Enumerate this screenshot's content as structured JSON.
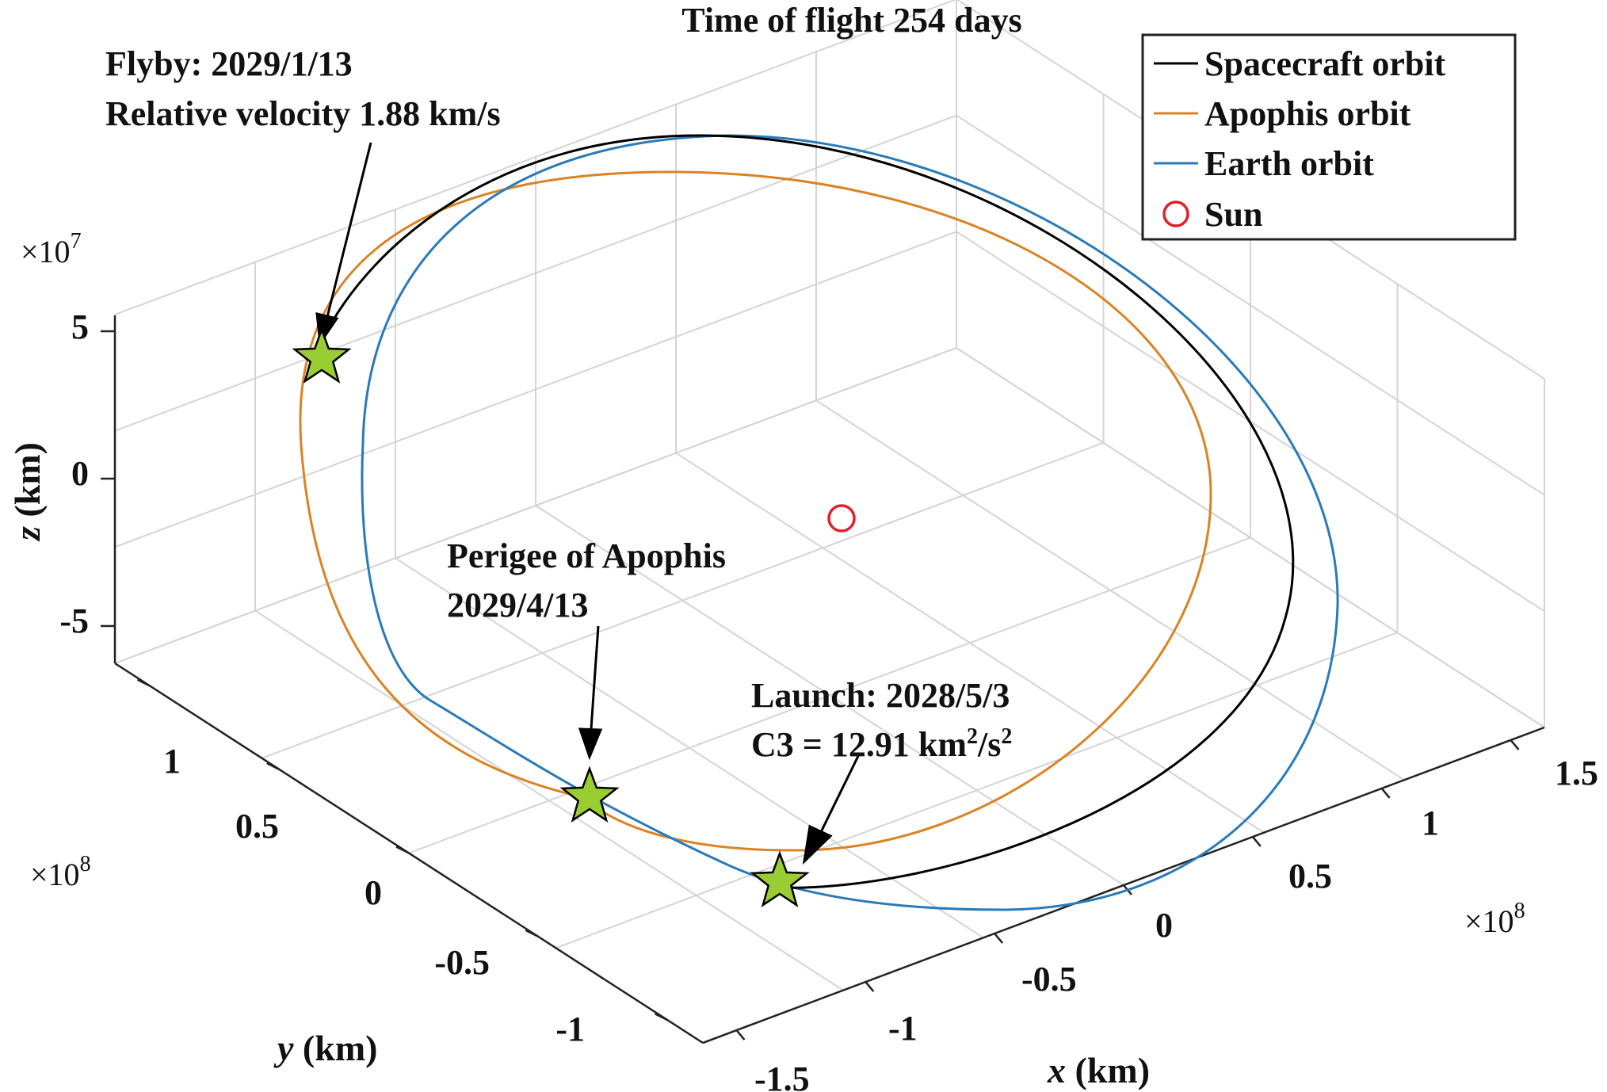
{
  "chart_data": {
    "type": "line",
    "title": "Time of flight 254 days",
    "xlabel_var": "x",
    "ylabel_var": "y",
    "zlabel_var": "z",
    "label_unit": " (km)",
    "x_ticks": [
      "-1.5",
      "-1",
      "-0.5",
      "0",
      "0.5",
      "1",
      "1.5"
    ],
    "y_ticks": [
      "-1",
      "-0.5",
      "0",
      "0.5",
      "1"
    ],
    "z_ticks": [
      "-5",
      "0",
      "5"
    ],
    "x_exponent_base": "×10",
    "x_exponent_power": "8",
    "y_exponent_base": "×10",
    "y_exponent_power": "8",
    "z_exponent_base": "×10",
    "z_exponent_power": "7",
    "grid": true,
    "legend_position": "top-right",
    "series": [
      {
        "name": "Spacecraft orbit",
        "color": "#000000",
        "style": "line"
      },
      {
        "name": "Apophis orbit",
        "color": "#d98324",
        "style": "line"
      },
      {
        "name": "Earth orbit",
        "color": "#2a7ab9",
        "style": "line"
      },
      {
        "name": "Sun",
        "color": "#e0202a",
        "style": "circle-marker"
      }
    ],
    "annotations": {
      "flyby_line1": "Flyby: 2029/1/13",
      "flyby_line2": "Relative velocity 1.88 km/s",
      "perigee_line1": "Perigee of Apophis",
      "perigee_line2": "2029/4/13",
      "launch_line1": "Launch: 2028/5/3",
      "launch_line2_prefix": "C3 = 12.91 km",
      "launch_line2_sup1": "2",
      "launch_line2_mid": "/s",
      "launch_line2_sup2": "2"
    },
    "event_marker_color": "#9acd32"
  }
}
